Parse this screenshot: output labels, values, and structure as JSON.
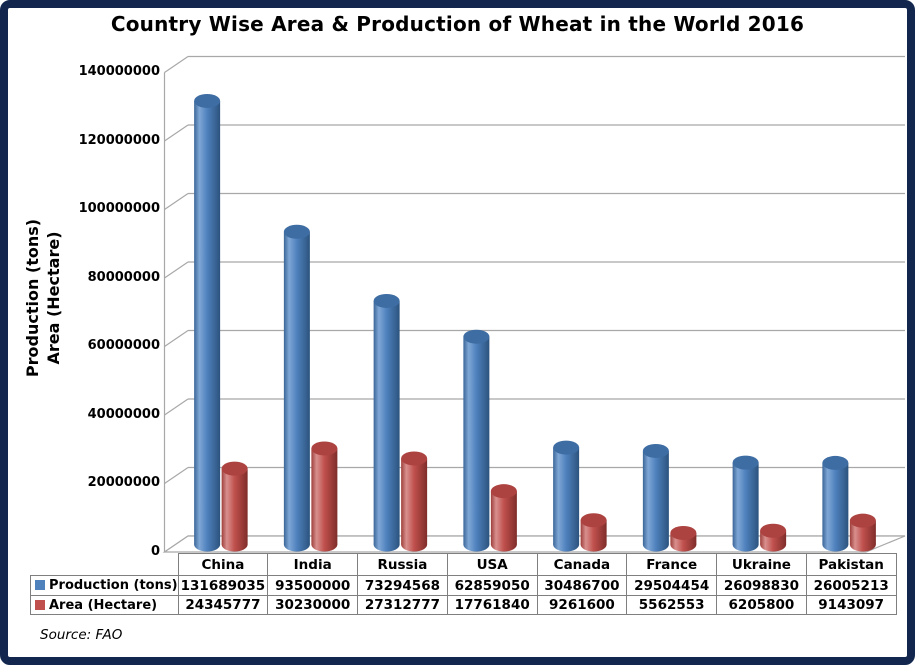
{
  "title": "Country Wise Area & Production of Wheat in the World 2016",
  "source_note": "Source: FAO",
  "colors": {
    "frame_border": "#13274E",
    "production_blue": "#4F81BD",
    "area_red": "#C0504D",
    "gridline": "#A8A8A8",
    "table_border": "#7F7F7F",
    "text": "#000000"
  },
  "y_axis": {
    "title_line1": "Production (tons)",
    "title_line2": "Area (Hectare)",
    "tick_labels": [
      "140000000",
      "120000000",
      "100000000",
      "80000000",
      "60000000",
      "40000000",
      "20000000",
      "0"
    ]
  },
  "chart_data": {
    "type": "bar",
    "style": "3d-cylinder",
    "title": "Country Wise Area & Production of Wheat in the World 2016",
    "ylabel": "Production (tons) Area (Hectare)",
    "xlabel": "",
    "ylim": [
      0,
      140000000
    ],
    "ytick_step": 20000000,
    "grid": true,
    "legend_position": "data-table-left",
    "categories": [
      "China",
      "India",
      "Russia",
      "USA",
      "Canada",
      "France",
      "Ukraine",
      "Pakistan"
    ],
    "series": [
      {
        "name": "Production (tons)",
        "color": "#4F81BD",
        "top_color": "#3E6DA3",
        "gradient_stops": [
          [
            "0%",
            "#3A6697"
          ],
          [
            "20%",
            "#7FA7D6"
          ],
          [
            "50%",
            "#4F81BD"
          ],
          [
            "100%",
            "#2C537E"
          ]
        ],
        "values": [
          131689035,
          93500000,
          73294568,
          62859050,
          30486700,
          29504454,
          26098830,
          26005213
        ]
      },
      {
        "name": "Area (Hectare)",
        "color": "#C0504D",
        "top_color": "#AC4340",
        "gradient_stops": [
          [
            "0%",
            "#9E3E3B"
          ],
          [
            "20%",
            "#D8908E"
          ],
          [
            "50%",
            "#C0504D"
          ],
          [
            "100%",
            "#7F2D2A"
          ]
        ],
        "values": [
          24345777,
          30230000,
          27312777,
          17761840,
          9261600,
          5562553,
          6205800,
          9143097
        ]
      }
    ]
  }
}
